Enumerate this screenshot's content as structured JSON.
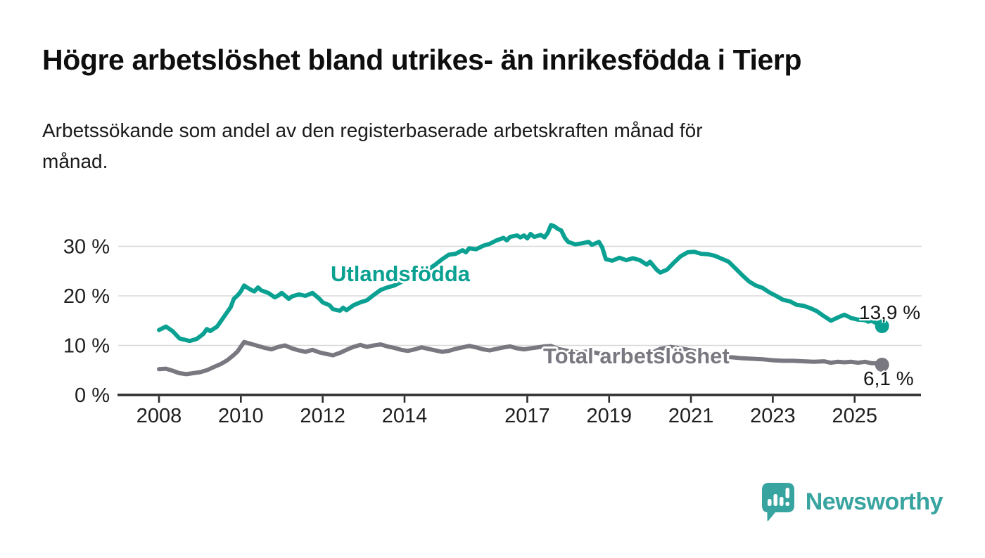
{
  "chart_data": {
    "type": "line",
    "title": "Högre arbetslöshet bland utrikes- än inrikesfödda i Tierp",
    "subtitle": "Arbetssökande som andel av den registerbaserade arbetskraften månad för månad.",
    "subtitle_lines": [
      "Arbetssökande som andel av den registerbaserade arbetskraften månad för",
      "månad."
    ],
    "xlabel": "",
    "ylabel": "",
    "x_unit": "year",
    "xlim": [
      2007.0,
      2026.6
    ],
    "ylim": [
      0,
      37
    ],
    "grid": "horizontal gridlines at each y tick",
    "legend_position": "inline labels on lines",
    "x_tick_values": [
      2008,
      2010,
      2012,
      2014,
      2017,
      2019,
      2021,
      2023,
      2025
    ],
    "x_tick_labels": [
      "2008",
      "2010",
      "2012",
      "2014",
      "2017",
      "2019",
      "2021",
      "2023",
      "2025"
    ],
    "y_tick_values": [
      0,
      10,
      20,
      30
    ],
    "y_tick_labels": [
      "0 %",
      "10 %",
      "20 %",
      "30 %"
    ],
    "series": [
      {
        "name": "Utlandsfödda",
        "color": "#0aa192",
        "latest_value": 13.9,
        "end_label": "13,9 %",
        "points": [
          [
            2008.0,
            13.1
          ],
          [
            2008.17,
            13.8
          ],
          [
            2008.33,
            12.9
          ],
          [
            2008.5,
            11.4
          ],
          [
            2008.75,
            10.9
          ],
          [
            2008.92,
            11.3
          ],
          [
            2009.08,
            12.3
          ],
          [
            2009.17,
            13.3
          ],
          [
            2009.25,
            12.9
          ],
          [
            2009.42,
            13.8
          ],
          [
            2009.58,
            15.7
          ],
          [
            2009.75,
            17.7
          ],
          [
            2009.83,
            19.4
          ],
          [
            2009.92,
            20.1
          ],
          [
            2010.0,
            20.9
          ],
          [
            2010.08,
            22.1
          ],
          [
            2010.17,
            21.6
          ],
          [
            2010.25,
            21.2
          ],
          [
            2010.33,
            20.9
          ],
          [
            2010.42,
            21.7
          ],
          [
            2010.5,
            21.1
          ],
          [
            2010.67,
            20.6
          ],
          [
            2010.83,
            19.7
          ],
          [
            2010.92,
            20.1
          ],
          [
            2011.0,
            20.6
          ],
          [
            2011.17,
            19.4
          ],
          [
            2011.25,
            19.9
          ],
          [
            2011.42,
            20.3
          ],
          [
            2011.58,
            20.0
          ],
          [
            2011.75,
            20.6
          ],
          [
            2011.92,
            19.4
          ],
          [
            2012.0,
            18.7
          ],
          [
            2012.17,
            18.1
          ],
          [
            2012.25,
            17.3
          ],
          [
            2012.42,
            17.0
          ],
          [
            2012.5,
            17.6
          ],
          [
            2012.58,
            17.1
          ],
          [
            2012.75,
            18.1
          ],
          [
            2012.92,
            18.7
          ],
          [
            2013.08,
            19.1
          ],
          [
            2013.25,
            20.2
          ],
          [
            2013.42,
            21.2
          ],
          [
            2013.58,
            21.7
          ],
          [
            2013.75,
            22.1
          ],
          [
            2013.92,
            22.8
          ],
          [
            2014.08,
            23.5
          ],
          [
            2014.25,
            24.1
          ],
          [
            2014.42,
            24.7
          ],
          [
            2014.58,
            25.3
          ],
          [
            2014.75,
            26.3
          ],
          [
            2014.92,
            27.4
          ],
          [
            2015.08,
            28.3
          ],
          [
            2015.25,
            28.5
          ],
          [
            2015.42,
            29.2
          ],
          [
            2015.5,
            28.8
          ],
          [
            2015.58,
            29.6
          ],
          [
            2015.75,
            29.4
          ],
          [
            2015.92,
            30.1
          ],
          [
            2016.08,
            30.5
          ],
          [
            2016.25,
            31.2
          ],
          [
            2016.42,
            31.7
          ],
          [
            2016.5,
            31.2
          ],
          [
            2016.58,
            31.9
          ],
          [
            2016.75,
            32.2
          ],
          [
            2016.83,
            31.8
          ],
          [
            2016.92,
            32.2
          ],
          [
            2017.0,
            31.6
          ],
          [
            2017.08,
            32.5
          ],
          [
            2017.17,
            31.9
          ],
          [
            2017.33,
            32.3
          ],
          [
            2017.42,
            31.8
          ],
          [
            2017.5,
            32.7
          ],
          [
            2017.58,
            34.3
          ],
          [
            2017.67,
            34.0
          ],
          [
            2017.75,
            33.5
          ],
          [
            2017.83,
            33.2
          ],
          [
            2017.92,
            31.7
          ],
          [
            2018.0,
            30.9
          ],
          [
            2018.17,
            30.4
          ],
          [
            2018.33,
            30.6
          ],
          [
            2018.5,
            30.9
          ],
          [
            2018.58,
            30.3
          ],
          [
            2018.75,
            30.9
          ],
          [
            2018.83,
            29.8
          ],
          [
            2018.92,
            27.4
          ],
          [
            2019.08,
            27.1
          ],
          [
            2019.25,
            27.7
          ],
          [
            2019.42,
            27.2
          ],
          [
            2019.58,
            27.6
          ],
          [
            2019.75,
            27.2
          ],
          [
            2019.92,
            26.3
          ],
          [
            2020.0,
            26.9
          ],
          [
            2020.17,
            25.2
          ],
          [
            2020.25,
            24.7
          ],
          [
            2020.42,
            25.3
          ],
          [
            2020.58,
            26.7
          ],
          [
            2020.75,
            28.0
          ],
          [
            2020.92,
            28.8
          ],
          [
            2021.08,
            28.9
          ],
          [
            2021.25,
            28.5
          ],
          [
            2021.42,
            28.4
          ],
          [
            2021.58,
            28.1
          ],
          [
            2021.75,
            27.5
          ],
          [
            2021.92,
            26.9
          ],
          [
            2022.08,
            25.6
          ],
          [
            2022.25,
            24.2
          ],
          [
            2022.42,
            22.9
          ],
          [
            2022.58,
            22.1
          ],
          [
            2022.75,
            21.6
          ],
          [
            2022.92,
            20.7
          ],
          [
            2023.08,
            20.0
          ],
          [
            2023.25,
            19.2
          ],
          [
            2023.42,
            18.9
          ],
          [
            2023.58,
            18.2
          ],
          [
            2023.75,
            18.0
          ],
          [
            2023.92,
            17.5
          ],
          [
            2024.08,
            16.9
          ],
          [
            2024.25,
            15.9
          ],
          [
            2024.42,
            15.0
          ],
          [
            2024.58,
            15.6
          ],
          [
            2024.75,
            16.2
          ],
          [
            2024.92,
            15.5
          ],
          [
            2025.08,
            15.2
          ],
          [
            2025.25,
            15.1
          ],
          [
            2025.33,
            14.8
          ],
          [
            2025.42,
            15.0
          ],
          [
            2025.5,
            14.6
          ],
          [
            2025.58,
            14.4
          ],
          [
            2025.67,
            13.9
          ]
        ]
      },
      {
        "name": "Total arbetslöshet",
        "color": "#797880",
        "latest_value": 6.1,
        "end_label": "6,1 %",
        "points": [
          [
            2008.0,
            5.2
          ],
          [
            2008.17,
            5.3
          ],
          [
            2008.33,
            4.9
          ],
          [
            2008.5,
            4.4
          ],
          [
            2008.67,
            4.2
          ],
          [
            2008.83,
            4.4
          ],
          [
            2009.0,
            4.6
          ],
          [
            2009.17,
            5.0
          ],
          [
            2009.33,
            5.6
          ],
          [
            2009.5,
            6.2
          ],
          [
            2009.67,
            7.0
          ],
          [
            2009.83,
            8.1
          ],
          [
            2009.92,
            8.8
          ],
          [
            2010.08,
            10.7
          ],
          [
            2010.25,
            10.3
          ],
          [
            2010.42,
            9.9
          ],
          [
            2010.58,
            9.5
          ],
          [
            2010.75,
            9.2
          ],
          [
            2010.92,
            9.7
          ],
          [
            2011.08,
            10.0
          ],
          [
            2011.25,
            9.4
          ],
          [
            2011.42,
            9.0
          ],
          [
            2011.58,
            8.7
          ],
          [
            2011.75,
            9.1
          ],
          [
            2011.92,
            8.6
          ],
          [
            2012.08,
            8.3
          ],
          [
            2012.25,
            8.0
          ],
          [
            2012.42,
            8.5
          ],
          [
            2012.58,
            9.1
          ],
          [
            2012.75,
            9.7
          ],
          [
            2012.92,
            10.1
          ],
          [
            2013.08,
            9.7
          ],
          [
            2013.25,
            10.0
          ],
          [
            2013.42,
            10.2
          ],
          [
            2013.58,
            9.8
          ],
          [
            2013.75,
            9.5
          ],
          [
            2013.92,
            9.1
          ],
          [
            2014.08,
            8.9
          ],
          [
            2014.25,
            9.2
          ],
          [
            2014.42,
            9.6
          ],
          [
            2014.58,
            9.3
          ],
          [
            2014.75,
            9.0
          ],
          [
            2014.92,
            8.7
          ],
          [
            2015.08,
            8.9
          ],
          [
            2015.25,
            9.3
          ],
          [
            2015.42,
            9.6
          ],
          [
            2015.58,
            9.9
          ],
          [
            2015.75,
            9.6
          ],
          [
            2015.92,
            9.2
          ],
          [
            2016.08,
            9.0
          ],
          [
            2016.25,
            9.3
          ],
          [
            2016.42,
            9.6
          ],
          [
            2016.58,
            9.8
          ],
          [
            2016.75,
            9.4
          ],
          [
            2016.92,
            9.2
          ],
          [
            2017.08,
            9.4
          ],
          [
            2017.25,
            9.6
          ],
          [
            2017.42,
            9.8
          ],
          [
            2017.58,
            9.9
          ],
          [
            2017.75,
            9.3
          ],
          [
            2017.92,
            9.0
          ],
          [
            2018.08,
            8.8
          ],
          [
            2018.25,
            8.6
          ],
          [
            2018.5,
            8.8
          ],
          [
            2018.75,
            8.4
          ],
          [
            2019.0,
            8.2
          ],
          [
            2019.25,
            8.4
          ],
          [
            2019.5,
            8.2
          ],
          [
            2019.75,
            8.0
          ],
          [
            2020.0,
            8.3
          ],
          [
            2020.25,
            9.3
          ],
          [
            2020.5,
            9.7
          ],
          [
            2020.75,
            9.4
          ],
          [
            2021.0,
            9.0
          ],
          [
            2021.25,
            8.5
          ],
          [
            2021.5,
            8.1
          ],
          [
            2021.75,
            7.8
          ],
          [
            2022.0,
            7.6
          ],
          [
            2022.25,
            7.4
          ],
          [
            2022.5,
            7.3
          ],
          [
            2022.75,
            7.2
          ],
          [
            2023.0,
            7.0
          ],
          [
            2023.25,
            6.9
          ],
          [
            2023.5,
            6.9
          ],
          [
            2023.75,
            6.8
          ],
          [
            2024.0,
            6.7
          ],
          [
            2024.25,
            6.8
          ],
          [
            2024.42,
            6.5
          ],
          [
            2024.58,
            6.7
          ],
          [
            2024.75,
            6.6
          ],
          [
            2024.92,
            6.7
          ],
          [
            2025.08,
            6.5
          ],
          [
            2025.25,
            6.7
          ],
          [
            2025.42,
            6.4
          ],
          [
            2025.58,
            6.4
          ],
          [
            2025.67,
            6.1
          ]
        ]
      }
    ]
  },
  "colors": {
    "background": "#ffffff",
    "axis": "#2d2d2d",
    "gridline": "#d8d8d8",
    "tick_label": "#1f1f1f",
    "title_text": "#0e0e0e",
    "series_utlandsfodda": "#0aa192",
    "series_total": "#797880",
    "brand_teal": "#38a4a0"
  },
  "branding": {
    "name": "Newsworthy"
  }
}
